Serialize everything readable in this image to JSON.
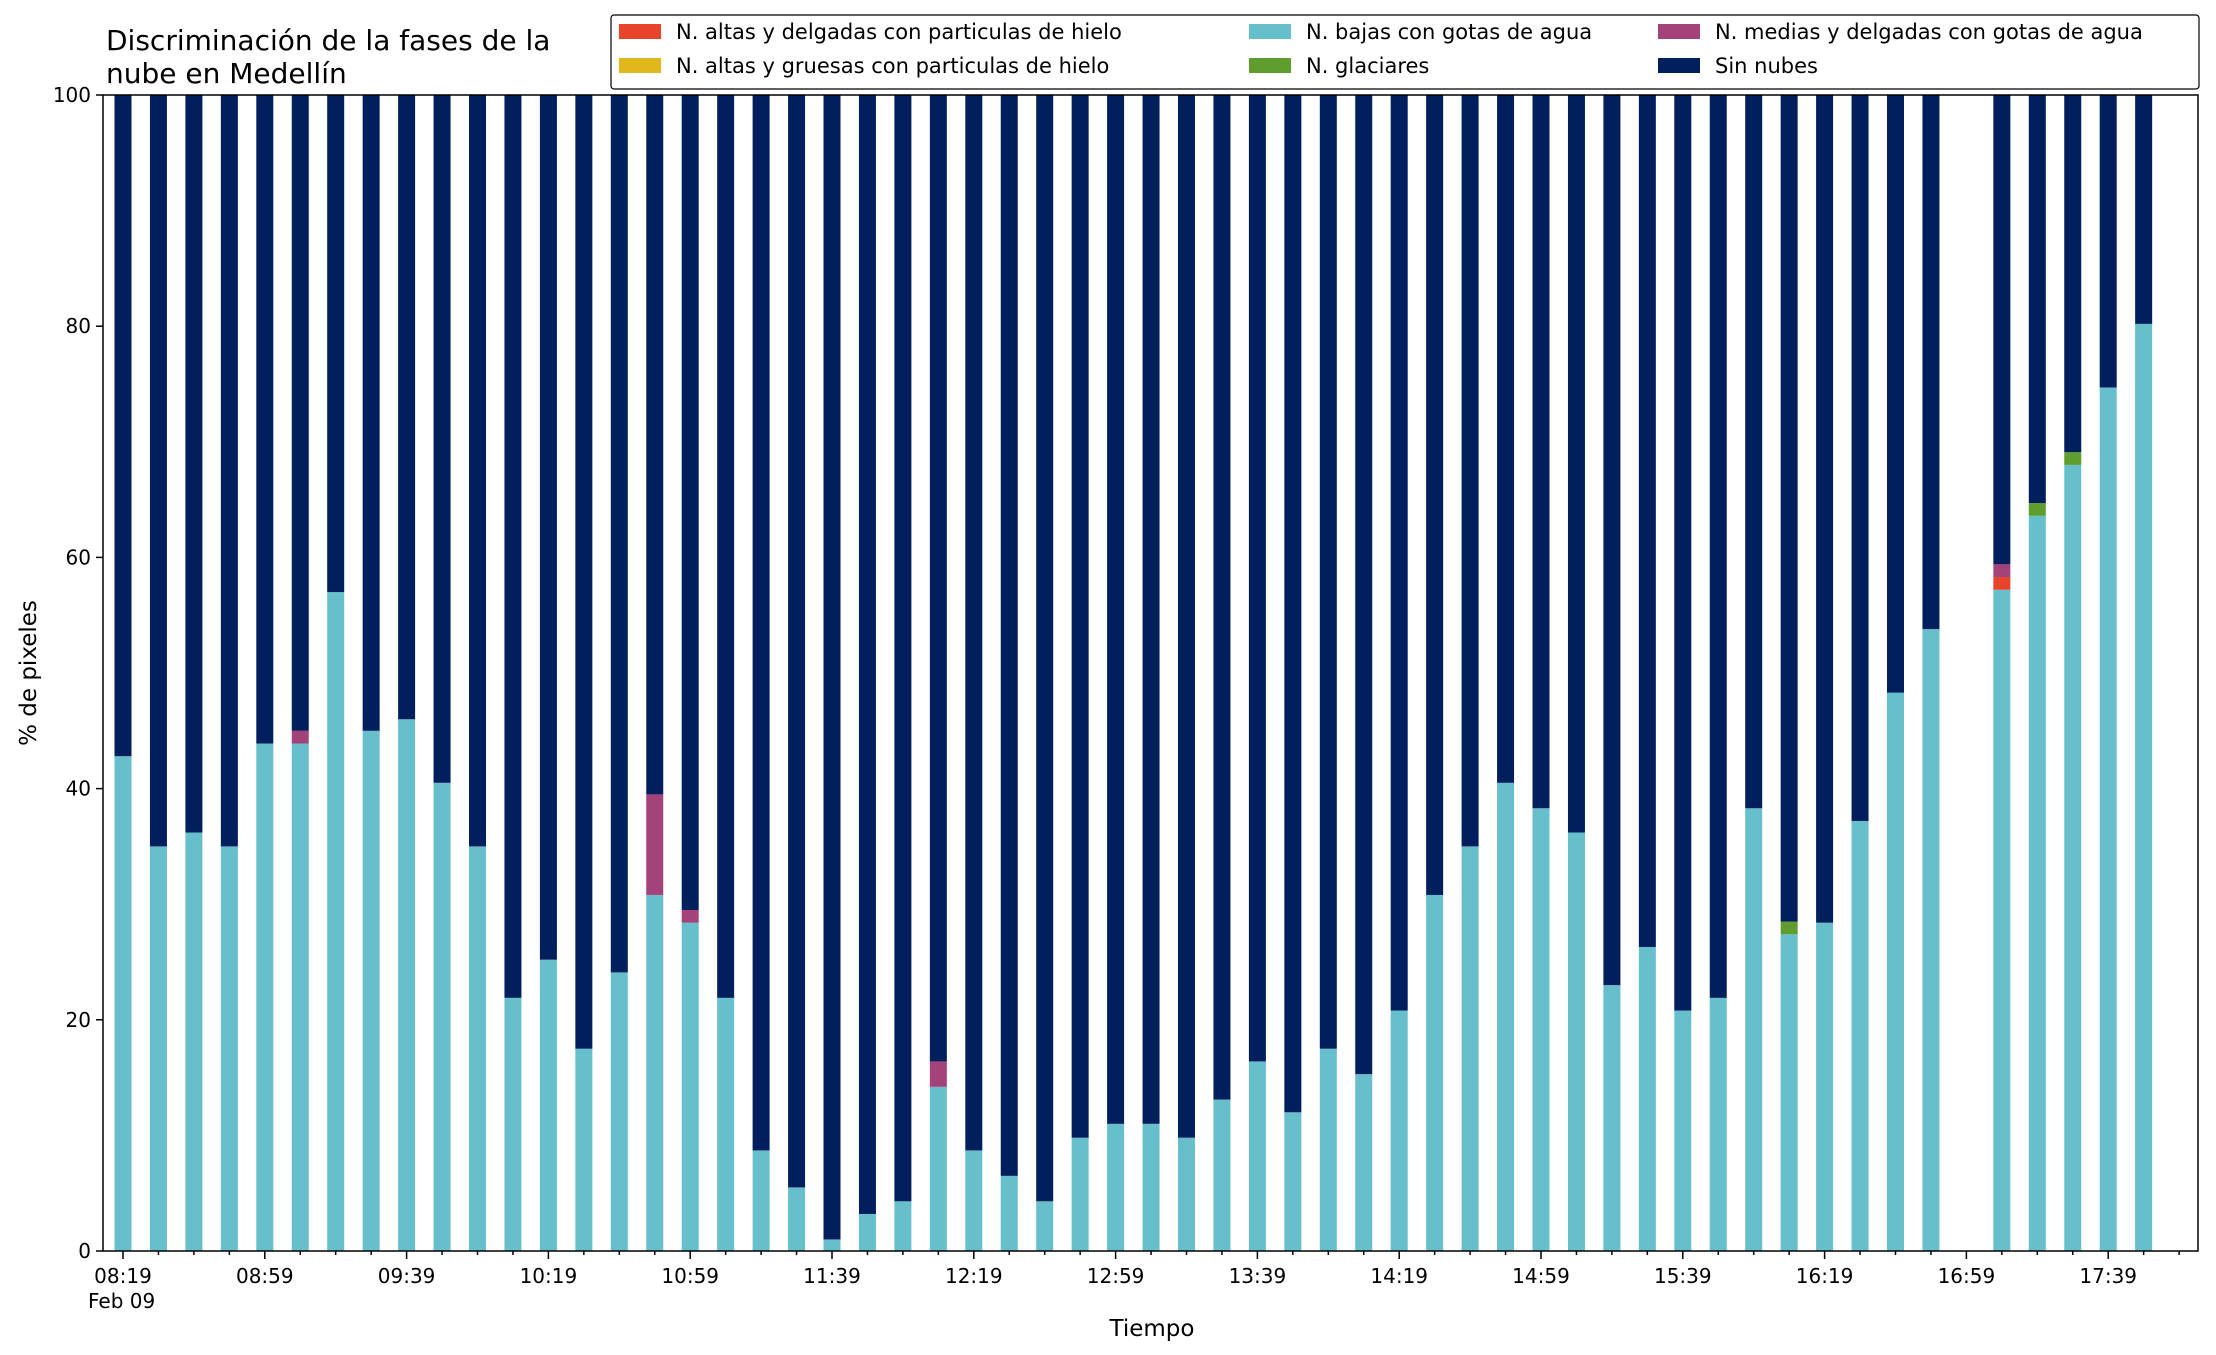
{
  "chart_data": {
    "type": "bar",
    "stacked": true,
    "title": "Discriminación de la fases de la nube en Medellín",
    "title_lines": [
      "Discriminación de la fases de la",
      "nube en Medellín"
    ],
    "xlabel": "Tiempo",
    "ylabel": "% de pixeles",
    "ylim": [
      0,
      100
    ],
    "yticks": [
      "0",
      "20",
      "40",
      "60",
      "80",
      "100"
    ],
    "grid": false,
    "legend_position": "top-right",
    "x_start": "08:19",
    "x_step_minutes": 10,
    "x_tick_labels": [
      "08:19",
      "08:59",
      "09:39",
      "10:19",
      "10:59",
      "11:39",
      "12:19",
      "12:59",
      "13:39",
      "14:19",
      "14:59",
      "15:39",
      "16:19",
      "16:59",
      "17:39"
    ],
    "x_date_label": "Feb 09",
    "x_count": 59,
    "series": [
      {
        "name": "N. bajas con gotas de agua",
        "color": "#66bfca",
        "values": [
          42.8,
          35,
          36.2,
          35,
          43.9,
          43.9,
          57,
          45,
          46,
          40.5,
          35,
          21.9,
          25.2,
          17.5,
          24.1,
          30.8,
          28.4,
          21.9,
          8.7,
          5.5,
          1,
          3.2,
          4.3,
          14.2,
          8.7,
          6.5,
          4.3,
          9.8,
          11,
          11,
          9.8,
          13.1,
          16.4,
          12,
          17.5,
          15.3,
          20.8,
          30.8,
          35,
          40.5,
          38.3,
          36.2,
          23,
          26.3,
          20.8,
          21.9,
          38.3,
          27.4,
          28.4,
          37.2,
          48.3,
          53.8,
          0,
          57.2,
          63.6,
          68,
          74.7,
          80.2,
          null
        ]
      },
      {
        "name": "N. altas y delgadas con particulas de hielo",
        "color": "#e8432b",
        "values": [
          0,
          0,
          0,
          0,
          0,
          0,
          0,
          0,
          0,
          0,
          0,
          0,
          0,
          0,
          0,
          0,
          0,
          0,
          0,
          0,
          0,
          0,
          0,
          0,
          0,
          0,
          0,
          0,
          0,
          0,
          0,
          0,
          0,
          0,
          0,
          0,
          0,
          0,
          0,
          0,
          0,
          0,
          0,
          0,
          0,
          0,
          0,
          0,
          0,
          0,
          0,
          0,
          0,
          1.1,
          0,
          0,
          0,
          0,
          null
        ]
      },
      {
        "name": "N. medias y delgadas con gotas de agua",
        "color": "#a3437a",
        "values": [
          0,
          0,
          0,
          0,
          0,
          1.1,
          0,
          0,
          0,
          0,
          0,
          0,
          0,
          0,
          0,
          8.7,
          1.1,
          0,
          0,
          0,
          0,
          0,
          0,
          2.2,
          0,
          0,
          0,
          0,
          0,
          0,
          0,
          0,
          0,
          0,
          0,
          0,
          0,
          0,
          0,
          0,
          0,
          0,
          0,
          0,
          0,
          0,
          0,
          0,
          0,
          0,
          0,
          0,
          0,
          1.1,
          0,
          0,
          0,
          0,
          null
        ]
      },
      {
        "name": "N. altas y gruesas con particulas de hielo",
        "color": "#e2b71c",
        "values": [
          0,
          0,
          0,
          0,
          0,
          0,
          0,
          0,
          0,
          0,
          0,
          0,
          0,
          0,
          0,
          0,
          0,
          0,
          0,
          0,
          0,
          0,
          0,
          0,
          0,
          0,
          0,
          0,
          0,
          0,
          0,
          0,
          0,
          0,
          0,
          0,
          0,
          0,
          0,
          0,
          0,
          0,
          0,
          0,
          0,
          0,
          0,
          0,
          0,
          0,
          0,
          0,
          0,
          0,
          0,
          0,
          0,
          0,
          null
        ]
      },
      {
        "name": "N. glaciares",
        "color": "#5f9e2e",
        "values": [
          0,
          0,
          0,
          0,
          0,
          0,
          0,
          0,
          0,
          0,
          0,
          0,
          0,
          0,
          0,
          0,
          0,
          0,
          0,
          0,
          0,
          0,
          0,
          0,
          0,
          0,
          0,
          0,
          0,
          0,
          0,
          0,
          0,
          0,
          0,
          0,
          0,
          0,
          0,
          0,
          0,
          0,
          0,
          0,
          0,
          0,
          0,
          1.1,
          0,
          0,
          0,
          0,
          0,
          0,
          1.1,
          1.1,
          0,
          0,
          null
        ]
      },
      {
        "name": "Sin nubes",
        "color": "#001f5c",
        "values": [
          57.2,
          65,
          63.8,
          65,
          56.1,
          55,
          43,
          55,
          54,
          59.5,
          65,
          78.1,
          74.8,
          82.5,
          75.9,
          60.5,
          70.5,
          78.1,
          91.3,
          94.5,
          99,
          96.8,
          95.7,
          83.6,
          91.3,
          93.5,
          95.7,
          90.2,
          89,
          89,
          90.2,
          86.9,
          83.6,
          88,
          82.5,
          84.7,
          79.2,
          69.2,
          65,
          59.5,
          61.7,
          63.8,
          77,
          73.7,
          79.2,
          78.1,
          61.7,
          71.5,
          71.6,
          62.8,
          51.7,
          46.2,
          0,
          40.6,
          35.3,
          30.9,
          25.3,
          19.8,
          null
        ]
      }
    ],
    "legend_order": [
      "N. altas y delgadas con particulas de hielo",
      "N. altas y gruesas con particulas de hielo",
      "N. bajas con gotas de agua",
      "N. glaciares",
      "N. medias y delgadas con gotas de agua",
      "Sin nubes"
    ]
  }
}
